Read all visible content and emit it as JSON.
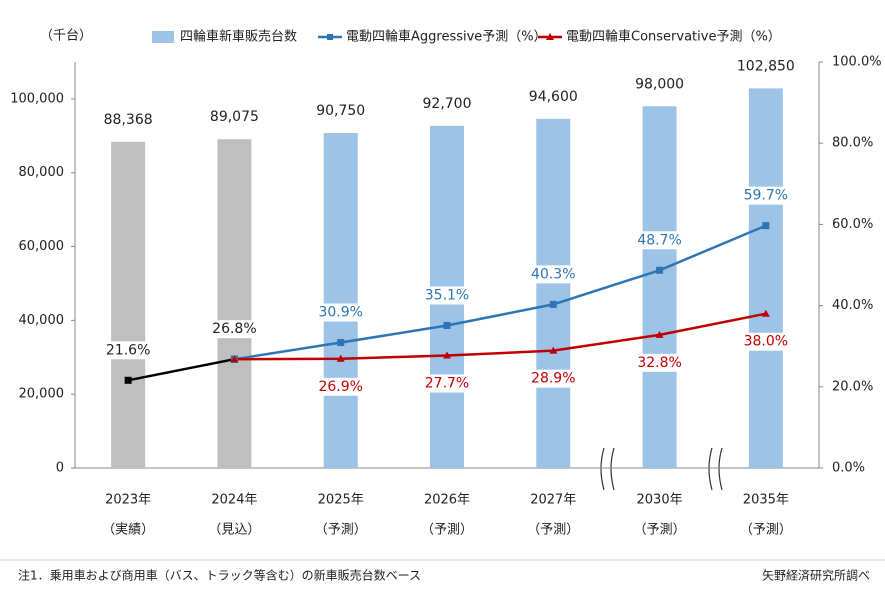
{
  "chart_data": {
    "type": "bar_line",
    "unit_label": "（千台）",
    "categories": [
      [
        "2023年",
        "（実績）"
      ],
      [
        "2024年",
        "（見込）"
      ],
      [
        "2025年",
        "（予測）"
      ],
      [
        "2026年",
        "（予測）"
      ],
      [
        "2027年",
        "（予測）"
      ],
      [
        "2030年",
        "（予測）"
      ],
      [
        "2035年",
        "（予測）"
      ]
    ],
    "bars": {
      "name": "四輪車新車販売台数",
      "values": [
        88368,
        89075,
        90750,
        92700,
        94600,
        98000,
        102850
      ],
      "value_labels": [
        "88,368",
        "89,075",
        "90,750",
        "92,700",
        "94,600",
        "98,000",
        "102,850"
      ],
      "colors": [
        "#bfbfbf",
        "#bfbfbf",
        "#9dc3e6",
        "#9dc3e6",
        "#9dc3e6",
        "#9dc3e6",
        "#9dc3e6"
      ]
    },
    "series": [
      {
        "color": "#000000",
        "axis": "y2",
        "marker": "square",
        "values": [
          21.6,
          26.8,
          null,
          null,
          null,
          null,
          null
        ],
        "value_labels": [
          "21.6%",
          "26.8%",
          null,
          null,
          null,
          null,
          null
        ],
        "label_side": "above"
      },
      {
        "name": "電動四輪車Aggressive予測（%）",
        "color": "#2e75b6",
        "axis": "y2",
        "marker": "square",
        "values": [
          null,
          26.8,
          30.9,
          35.1,
          40.3,
          48.7,
          59.7
        ],
        "value_labels": [
          null,
          null,
          "30.9%",
          "35.1%",
          "40.3%",
          "48.7%",
          "59.7%"
        ],
        "label_side": "above"
      },
      {
        "name": "電動四輪車Conservative予測（%）",
        "color": "#c00000",
        "axis": "y2",
        "marker": "triangle",
        "values": [
          null,
          26.8,
          26.9,
          27.7,
          28.9,
          32.8,
          38.0
        ],
        "value_labels": [
          null,
          null,
          "26.9%",
          "27.7%",
          "28.9%",
          "32.8%",
          "38.0%"
        ],
        "label_side": "below"
      }
    ],
    "ylim": [
      0,
      110000
    ],
    "yticks": [
      0,
      {
        "value": 20000,
        "label": "20,000"
      },
      {
        "value": 40000,
        "label": "40,000"
      },
      {
        "value": 60000,
        "label": "60,000"
      },
      {
        "value": 80000,
        "label": "80,000"
      },
      {
        "value": 100000,
        "label": "100,000"
      }
    ],
    "y2lim": [
      0,
      100
    ],
    "y2ticks": [
      {
        "value": 0,
        "label": "0.0%"
      },
      {
        "value": 20,
        "label": "20.0%"
      },
      {
        "value": 40,
        "label": "40.0%"
      },
      {
        "value": 60,
        "label": "60.0%"
      },
      {
        "value": 80,
        "label": "80.0%"
      },
      {
        "value": 100,
        "label": "100.0%"
      }
    ],
    "note": "注1．乗用車および商用車（バス、トラック等含む）の新車販売台数ベース",
    "source": "矢野経済研究所調べ"
  }
}
